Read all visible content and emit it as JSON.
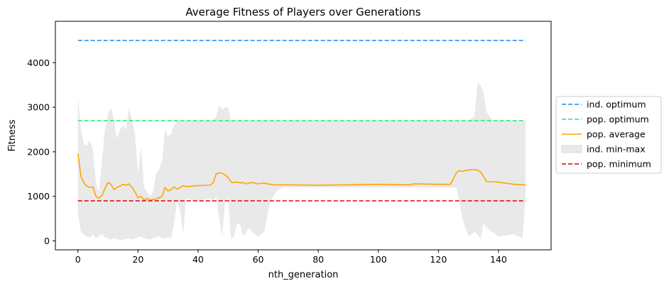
{
  "chart_data": {
    "type": "line",
    "title": "Average Fitness of Players over Generations",
    "xlabel": "nth_generation",
    "ylabel": "Fitness",
    "xlim": [
      -7.5,
      157.5
    ],
    "ylim": [
      -200,
      4930
    ],
    "xticks": [
      0,
      20,
      40,
      60,
      80,
      100,
      120,
      140
    ],
    "yticks": [
      0,
      1000,
      2000,
      3000,
      4000
    ],
    "grid": false,
    "legend_position": "center-right-outside",
    "series": [
      {
        "name": "ind. optimum",
        "kind": "hline",
        "style": "dashed",
        "color": "#1e88e5",
        "x": [
          0,
          149
        ],
        "y": [
          4500,
          4500
        ]
      },
      {
        "name": "pop. optimum",
        "kind": "hline",
        "style": "dashed",
        "color": "#1de97a",
        "x": [
          0,
          149
        ],
        "y": [
          2700,
          2700
        ]
      },
      {
        "name": "pop. average",
        "kind": "line",
        "style": "solid",
        "color": "#ffa500",
        "x": [
          0,
          1,
          2,
          3,
          4,
          5,
          6,
          7,
          8,
          9,
          10,
          11,
          12,
          13,
          14,
          15,
          16,
          17,
          18,
          19,
          20,
          21,
          22,
          23,
          24,
          25,
          26,
          27,
          28,
          29,
          30,
          31,
          32,
          33,
          34,
          35,
          36,
          40,
          44,
          45,
          46,
          47,
          48,
          49,
          50,
          51,
          52,
          53,
          54,
          55,
          56,
          57,
          58,
          60,
          61,
          62,
          63,
          65,
          70,
          80,
          90,
          100,
          110,
          112,
          120,
          124,
          125,
          126,
          127,
          128,
          129,
          130,
          131,
          132,
          133,
          134,
          135,
          136,
          137,
          140,
          145,
          149
        ],
        "y": [
          1960,
          1450,
          1300,
          1230,
          1200,
          1210,
          1000,
          960,
          1020,
          1180,
          1310,
          1270,
          1150,
          1200,
          1230,
          1270,
          1250,
          1280,
          1200,
          1100,
          970,
          1000,
          920,
          950,
          920,
          930,
          940,
          970,
          1000,
          1200,
          1120,
          1150,
          1210,
          1160,
          1200,
          1240,
          1220,
          1240,
          1250,
          1300,
          1500,
          1530,
          1520,
          1480,
          1420,
          1320,
          1310,
          1320,
          1300,
          1310,
          1280,
          1300,
          1310,
          1280,
          1290,
          1300,
          1280,
          1260,
          1260,
          1250,
          1260,
          1270,
          1260,
          1280,
          1270,
          1270,
          1400,
          1530,
          1580,
          1560,
          1580,
          1590,
          1600,
          1600,
          1590,
          1550,
          1450,
          1330,
          1330,
          1320,
          1270,
          1260
        ]
      },
      {
        "name": "ind. min-max",
        "kind": "fill_between",
        "color": "#e9e9e9",
        "x": [
          0,
          1,
          2,
          3,
          4,
          5,
          6,
          7,
          8,
          9,
          10,
          11,
          12,
          13,
          14,
          15,
          16,
          17,
          18,
          19,
          20,
          21,
          22,
          23,
          24,
          25,
          26,
          27,
          28,
          29,
          30,
          31,
          32,
          33,
          34,
          35,
          36,
          40,
          44,
          45,
          46,
          47,
          48,
          49,
          50,
          51,
          52,
          53,
          54,
          55,
          56,
          57,
          58,
          60,
          62,
          64,
          66,
          68,
          70,
          80,
          100,
          120,
          126,
          128,
          130,
          132,
          133,
          134,
          135,
          136,
          138,
          140,
          145,
          148,
          149
        ],
        "y_min": [
          600,
          200,
          150,
          100,
          80,
          150,
          50,
          100,
          150,
          80,
          50,
          30,
          60,
          40,
          20,
          30,
          40,
          50,
          30,
          60,
          80,
          100,
          60,
          40,
          30,
          60,
          80,
          100,
          50,
          60,
          80,
          60,
          400,
          900,
          700,
          150,
          950,
          900,
          950,
          900,
          1000,
          500,
          100,
          900,
          950,
          50,
          100,
          400,
          350,
          100,
          200,
          300,
          200,
          100,
          200,
          900,
          1100,
          1200,
          1200,
          1200,
          1200,
          1200,
          1200,
          500,
          100,
          200,
          150,
          50,
          400,
          300,
          200,
          100,
          150,
          50,
          1000
        ],
        "y_max": [
          3280,
          2500,
          2150,
          2150,
          2250,
          2050,
          1300,
          1100,
          1800,
          2500,
          2850,
          3000,
          2700,
          2300,
          2500,
          2600,
          2500,
          3000,
          2700,
          2400,
          1500,
          2100,
          1200,
          1100,
          1000,
          1100,
          1500,
          1600,
          1800,
          2500,
          2350,
          2400,
          2600,
          2700,
          2700,
          2700,
          2700,
          2700,
          2700,
          2700,
          2800,
          3050,
          2950,
          3000,
          3000,
          2700,
          2700,
          2700,
          2700,
          2700,
          2700,
          2700,
          2700,
          2700,
          2700,
          2700,
          2700,
          2700,
          2700,
          2700,
          2700,
          2700,
          2700,
          2700,
          2700,
          2800,
          3550,
          3500,
          3350,
          2900,
          2700,
          2700,
          2700,
          2700,
          2700
        ]
      },
      {
        "name": "pop. minimum",
        "kind": "hline",
        "style": "dashed",
        "color": "#e00000",
        "x": [
          0,
          149
        ],
        "y": [
          900,
          900
        ]
      }
    ]
  }
}
